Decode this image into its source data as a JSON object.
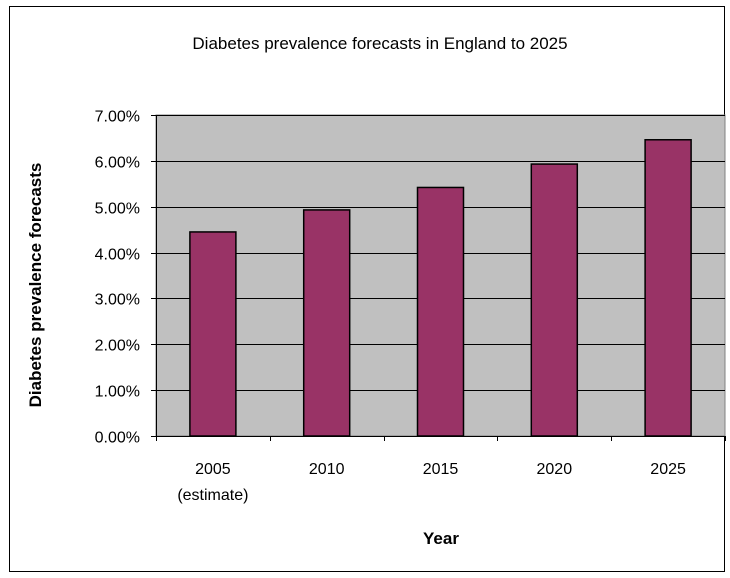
{
  "chart_data": {
    "type": "bar",
    "title": "Diabetes prevalence forecasts in England to 2025",
    "xlabel": "Year",
    "ylabel": "Diabetes prevalence forecasts",
    "categories": [
      [
        "2005",
        "(estimate)"
      ],
      [
        "2010"
      ],
      [
        "2015"
      ],
      [
        "2020"
      ],
      [
        "2025"
      ]
    ],
    "values": [
      4.45,
      4.93,
      5.42,
      5.93,
      6.46
    ],
    "ylim": [
      0,
      7
    ],
    "yticks": [
      "0.00%",
      "1.00%",
      "2.00%",
      "3.00%",
      "4.00%",
      "5.00%",
      "6.00%",
      "7.00%"
    ],
    "grid": true,
    "legend": "none",
    "colors": {
      "bar_fill": "#993366",
      "plot_background": "#c0c0c0",
      "gridline": "#000000",
      "bar_outline": "#000000"
    }
  }
}
